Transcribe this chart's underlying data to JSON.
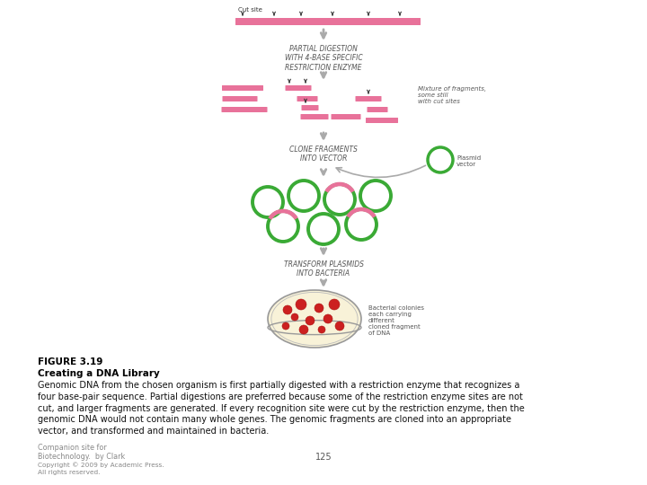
{
  "title": "FIGURE 3.19",
  "subtitle": "Creating a DNA Library",
  "body_text": "Genomic DNA from the chosen organism is first partially digested with a restriction enzyme that recognizes a\nfour base-pair sequence. Partial digestions are preferred because some of the restriction enzyme sites are not\ncut, and larger fragments are generated. If every recognition site were cut by the restriction enzyme, then the\ngenomic DNA would not contain many whole genes. The genomic fragments are cloned into an appropriate\nvector, and transformed and maintained in bacteria.",
  "footer_line1": "Companion site for",
  "footer_line2": "Biotechnology.  by Clark",
  "footer_line3": "Copyright © 2009 by Academic Press.",
  "footer_line4": "All rights reserved.",
  "page_number": "125",
  "dna_color": "#e8729a",
  "green_color": "#3aaa35",
  "label_cutsite": "Cut site",
  "label_step1": "PARTIAL DIGESTION\nWITH 4-BASE SPECIFIC\nRESTRICTION ENZYME",
  "label_step2": "Mixture of fragments,\nsome still\nwith cut sites",
  "label_step3": "CLONE FRAGMENTS\nINTO VECTOR",
  "label_step3b": "Plasmid\nvector",
  "label_step4": "TRANSFORM PLASMIDS\nINTO BACTERIA",
  "label_step4b": "Bacterial colonies\neach carrying\ndifferent\ncloned fragment\nof DNA",
  "background": "#ffffff",
  "arrow_color": "#aaaaaa",
  "cut_arrow_color": "#333333",
  "text_color": "#555555",
  "label_color": "#333333"
}
